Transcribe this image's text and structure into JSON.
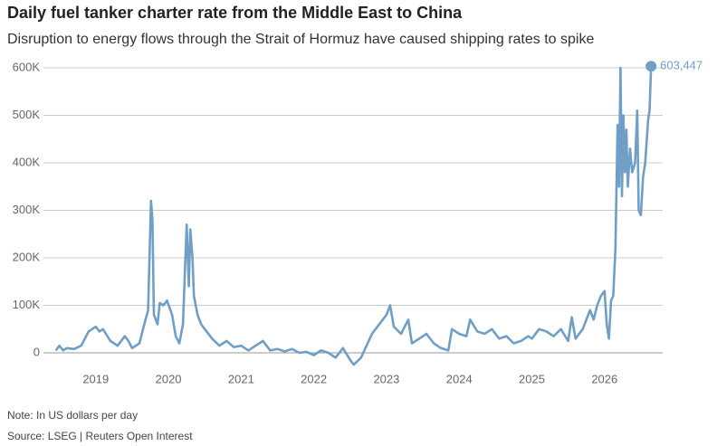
{
  "chart_data": {
    "type": "line",
    "title": "Daily fuel tanker charter rate from the Middle East to China",
    "subtitle": "Disruption to energy flows through the Strait of Hormuz have caused shipping rates to spike",
    "note": "Note: In US dollars per day",
    "source": "Source: LSEG | Reuters Open Interest",
    "xlim": [
      2018.28,
      2026.8
    ],
    "xticks": [
      2019,
      2020,
      2021,
      2022,
      2023,
      2024,
      2025,
      2026
    ],
    "ylim": [
      -30000,
      620000
    ],
    "yticks": [
      0,
      {
        "value": 100000,
        "label": "100K"
      },
      {
        "value": 200000,
        "label": "200K"
      },
      {
        "value": 300000,
        "label": "300K"
      },
      {
        "value": 400000,
        "label": "400K"
      },
      {
        "value": 500000,
        "label": "500K"
      },
      {
        "value": 600000,
        "label": "600K"
      }
    ],
    "grid": true,
    "annotation": {
      "text": "603,447"
    },
    "series": [
      {
        "name": "Charter rate",
        "color": "#6f9fc7",
        "x": [
          2018.45,
          2018.5,
          2018.55,
          2018.6,
          2018.7,
          2018.8,
          2018.85,
          2018.9,
          2019.0,
          2019.05,
          2019.1,
          2019.2,
          2019.3,
          2019.4,
          2019.45,
          2019.5,
          2019.6,
          2019.65,
          2019.72,
          2019.76,
          2019.78,
          2019.8,
          2019.85,
          2019.88,
          2019.93,
          2019.98,
          2020.05,
          2020.1,
          2020.15,
          2020.2,
          2020.25,
          2020.28,
          2020.3,
          2020.33,
          2020.35,
          2020.4,
          2020.45,
          2020.5,
          2020.6,
          2020.7,
          2020.8,
          2020.9,
          2021.0,
          2021.1,
          2021.2,
          2021.3,
          2021.4,
          2021.5,
          2021.6,
          2021.7,
          2021.8,
          2021.9,
          2022.0,
          2022.1,
          2022.2,
          2022.3,
          2022.4,
          2022.5,
          2022.55,
          2022.65,
          2022.8,
          2022.9,
          2023.0,
          2023.05,
          2023.1,
          2023.2,
          2023.3,
          2023.35,
          2023.45,
          2023.55,
          2023.65,
          2023.75,
          2023.85,
          2023.9,
          2024.0,
          2024.1,
          2024.15,
          2024.25,
          2024.35,
          2024.45,
          2024.55,
          2024.65,
          2024.75,
          2024.85,
          2024.95,
          2025.0,
          2025.1,
          2025.2,
          2025.3,
          2025.4,
          2025.5,
          2025.55,
          2025.6,
          2025.7,
          2025.8,
          2025.85,
          2025.9,
          2025.95,
          2026.0,
          2026.03,
          2026.06,
          2026.09,
          2026.12,
          2026.15,
          2026.18,
          2026.2,
          2026.22,
          2026.24,
          2026.26,
          2026.28,
          2026.3,
          2026.32,
          2026.35,
          2026.38,
          2026.42,
          2026.45,
          2026.47,
          2026.5,
          2026.53,
          2026.56,
          2026.6,
          2026.62,
          2026.64
        ],
        "values": [
          5000,
          15000,
          5000,
          10000,
          8000,
          15000,
          30000,
          45000,
          55000,
          45000,
          50000,
          25000,
          15000,
          35000,
          25000,
          10000,
          20000,
          50000,
          90000,
          320000,
          280000,
          80000,
          60000,
          105000,
          100000,
          110000,
          80000,
          35000,
          20000,
          60000,
          270000,
          140000,
          260000,
          200000,
          120000,
          80000,
          60000,
          50000,
          30000,
          15000,
          25000,
          12000,
          15000,
          5000,
          15000,
          25000,
          5000,
          8000,
          3000,
          8000,
          0,
          2000,
          -5000,
          5000,
          0,
          -10000,
          10000,
          -15000,
          -25000,
          -10000,
          40000,
          60000,
          80000,
          100000,
          55000,
          40000,
          70000,
          20000,
          30000,
          40000,
          20000,
          10000,
          5000,
          50000,
          40000,
          35000,
          70000,
          45000,
          40000,
          50000,
          30000,
          35000,
          20000,
          25000,
          35000,
          30000,
          50000,
          45000,
          35000,
          50000,
          25000,
          75000,
          30000,
          50000,
          90000,
          70000,
          100000,
          120000,
          130000,
          60000,
          30000,
          110000,
          120000,
          220000,
          480000,
          350000,
          600000,
          330000,
          500000,
          380000,
          470000,
          350000,
          430000,
          380000,
          400000,
          510000,
          300000,
          290000,
          370000,
          400000,
          490000,
          510000,
          603447
        ]
      }
    ]
  }
}
